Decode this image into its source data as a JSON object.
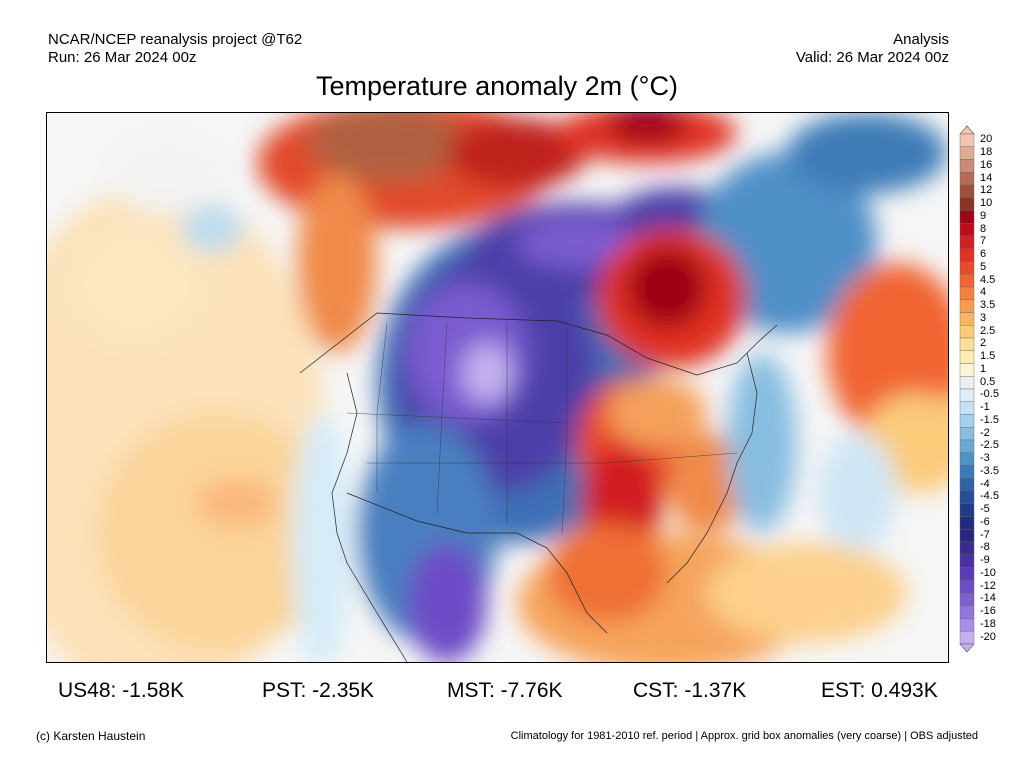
{
  "header": {
    "left_line1": "NCAR/NCEP reanalysis project @T62",
    "left_line2": "Run: 26 Mar 2024 00z",
    "right_line1": "Analysis",
    "right_line2": "Valid: 26 Mar 2024 00z"
  },
  "title": "Temperature anomaly 2m (°C)",
  "colorbar": {
    "labels": [
      "20",
      "18",
      "16",
      "14",
      "12",
      "10",
      "9",
      "8",
      "7",
      "6",
      "5",
      "4.5",
      "4",
      "3.5",
      "3",
      "2.5",
      "2",
      "1.5",
      "1",
      "0.5",
      "-0.5",
      "-1",
      "-1.5",
      "-2",
      "-2.5",
      "-3",
      "-3.5",
      "-4",
      "-4.5",
      "-5",
      "-6",
      "-7",
      "-8",
      "-9",
      "-10",
      "-12",
      "-14",
      "-16",
      "-18",
      "-20"
    ],
    "colors": [
      "#f2c5b3",
      "#deab95",
      "#c98b75",
      "#b46c58",
      "#9e4f3d",
      "#8a3424",
      "#a0001a",
      "#bd0a1e",
      "#d21f23",
      "#e03324",
      "#ea4a2a",
      "#f16533",
      "#f5803f",
      "#f89b4f",
      "#fab562",
      "#fbcb7a",
      "#fcde97",
      "#fdecb6",
      "#fdf6d6",
      "#eeeeee",
      "#dbeefa",
      "#c3e1f3",
      "#a6d0ea",
      "#87bde0",
      "#6aa8d4",
      "#4f92c6",
      "#3c7bb8",
      "#2f64a8",
      "#274e98",
      "#223a88",
      "#232b7e",
      "#2a2680",
      "#3b2a8f",
      "#4b30a3",
      "#5b3bb6",
      "#6d4cc6",
      "#7f60d3",
      "#9176de",
      "#a68de8",
      "#c2b0f1"
    ]
  },
  "stats": [
    {
      "label": "US48: -1.58K"
    },
    {
      "label": "PST: -2.35K"
    },
    {
      "label": "MST: -7.76K"
    },
    {
      "label": "CST: -1.37K"
    },
    {
      "label": "EST: 0.493K"
    }
  ],
  "footer": {
    "left": "(c) Karsten Haustein",
    "right": "Climatology for 1981-2010 ref. period | Approx. grid box anomalies (very coarse) | OBS adjusted"
  }
}
